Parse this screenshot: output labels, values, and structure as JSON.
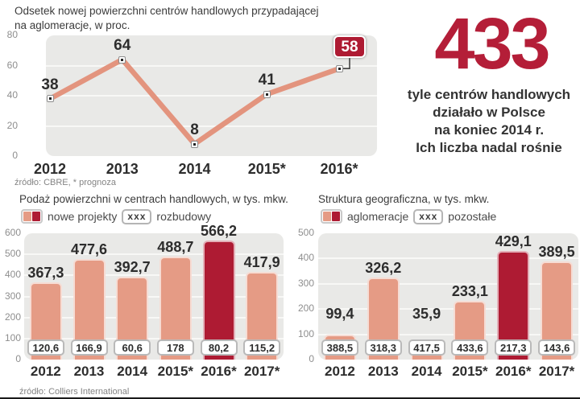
{
  "stat": {
    "big_number": "433",
    "lines": [
      "tyle centrów handlowych",
      "działało w Polsce",
      "na koniec 2014 r.",
      "Ich liczba nadal rośnie"
    ]
  },
  "bottom_source": "źródło: Colliers International",
  "colors": {
    "salmon": "#e59b85",
    "dark_red": "#ae1b33",
    "accent_red": "#b41e38",
    "plot_bg": "#e9e9e7"
  },
  "chart_data": [
    {
      "id": "line-share-agglomerations",
      "type": "line",
      "title": "Odsetek nowej powierzchni centrów handlowych przypadającej na aglomeracje, w proc.",
      "title_lines": [
        "Odsetek nowej powierzchni centrów handlowych przypadającej",
        "na aglomeracje, w proc."
      ],
      "categories": [
        "2012",
        "2013",
        "2014",
        "2015*",
        "2016*"
      ],
      "values": [
        38,
        64,
        8,
        41,
        58
      ],
      "ylim": [
        0,
        80
      ],
      "yticks": [
        0,
        20,
        40,
        60,
        80
      ],
      "grid": true,
      "badge_last_point": true,
      "source": "źródło: CBRE, * prognoza"
    },
    {
      "id": "supply-shopping-centres",
      "type": "bar",
      "title": "Podaż powierzchni w centrach handlowych, w tys. mkw.",
      "legend": [
        {
          "label": "nowe projekty",
          "symbol": "colors"
        },
        {
          "label": "rozbudowy",
          "symbol": "xxx"
        }
      ],
      "categories": [
        "2012",
        "2013",
        "2014",
        "2015*",
        "2016*",
        "2017*"
      ],
      "series": [
        {
          "name": "nowe projekty",
          "values": [
            367.3,
            477.6,
            392.7,
            488.7,
            566.2,
            417.9
          ]
        },
        {
          "name": "rozbudowy",
          "values": [
            120.6,
            166.9,
            60.6,
            178,
            80.2,
            115.2
          ]
        }
      ],
      "bar_labels": [
        "367,3",
        "477,6",
        "392,7",
        "488,7",
        "566,2",
        "417,9"
      ],
      "box_labels": [
        "120,6",
        "166,9",
        "60,6",
        "178",
        "80,2",
        "115,2"
      ],
      "highlight_index": 4,
      "ylim": [
        0,
        600
      ],
      "yticks": [
        0,
        100,
        200,
        300,
        400,
        500,
        600
      ],
      "grid": true
    },
    {
      "id": "geographic-structure",
      "type": "bar",
      "title": "Struktura geograficzna, w tys. mkw.",
      "legend": [
        {
          "label": "aglomeracje",
          "symbol": "colors"
        },
        {
          "label": "pozostałe",
          "symbol": "xxx"
        }
      ],
      "categories": [
        "2012",
        "2013",
        "2014",
        "2015*",
        "2016*",
        "2017*"
      ],
      "series": [
        {
          "name": "aglomeracje",
          "values": [
            99.4,
            326.2,
            35.9,
            233.1,
            429.1,
            389.5
          ]
        },
        {
          "name": "pozostałe",
          "values": [
            388.5,
            318.3,
            417.5,
            433.6,
            217.3,
            143.6
          ]
        }
      ],
      "bar_labels": [
        "99,4",
        "326,2",
        "35,9",
        "233,1",
        "429,1",
        "389,5"
      ],
      "box_labels": [
        "388,5",
        "318,3",
        "417,5",
        "433,6",
        "217,3",
        "143,6"
      ],
      "highlight_index": 4,
      "ylim": [
        0,
        500
      ],
      "yticks": [
        0,
        100,
        200,
        300,
        400,
        500
      ],
      "grid": true
    }
  ]
}
